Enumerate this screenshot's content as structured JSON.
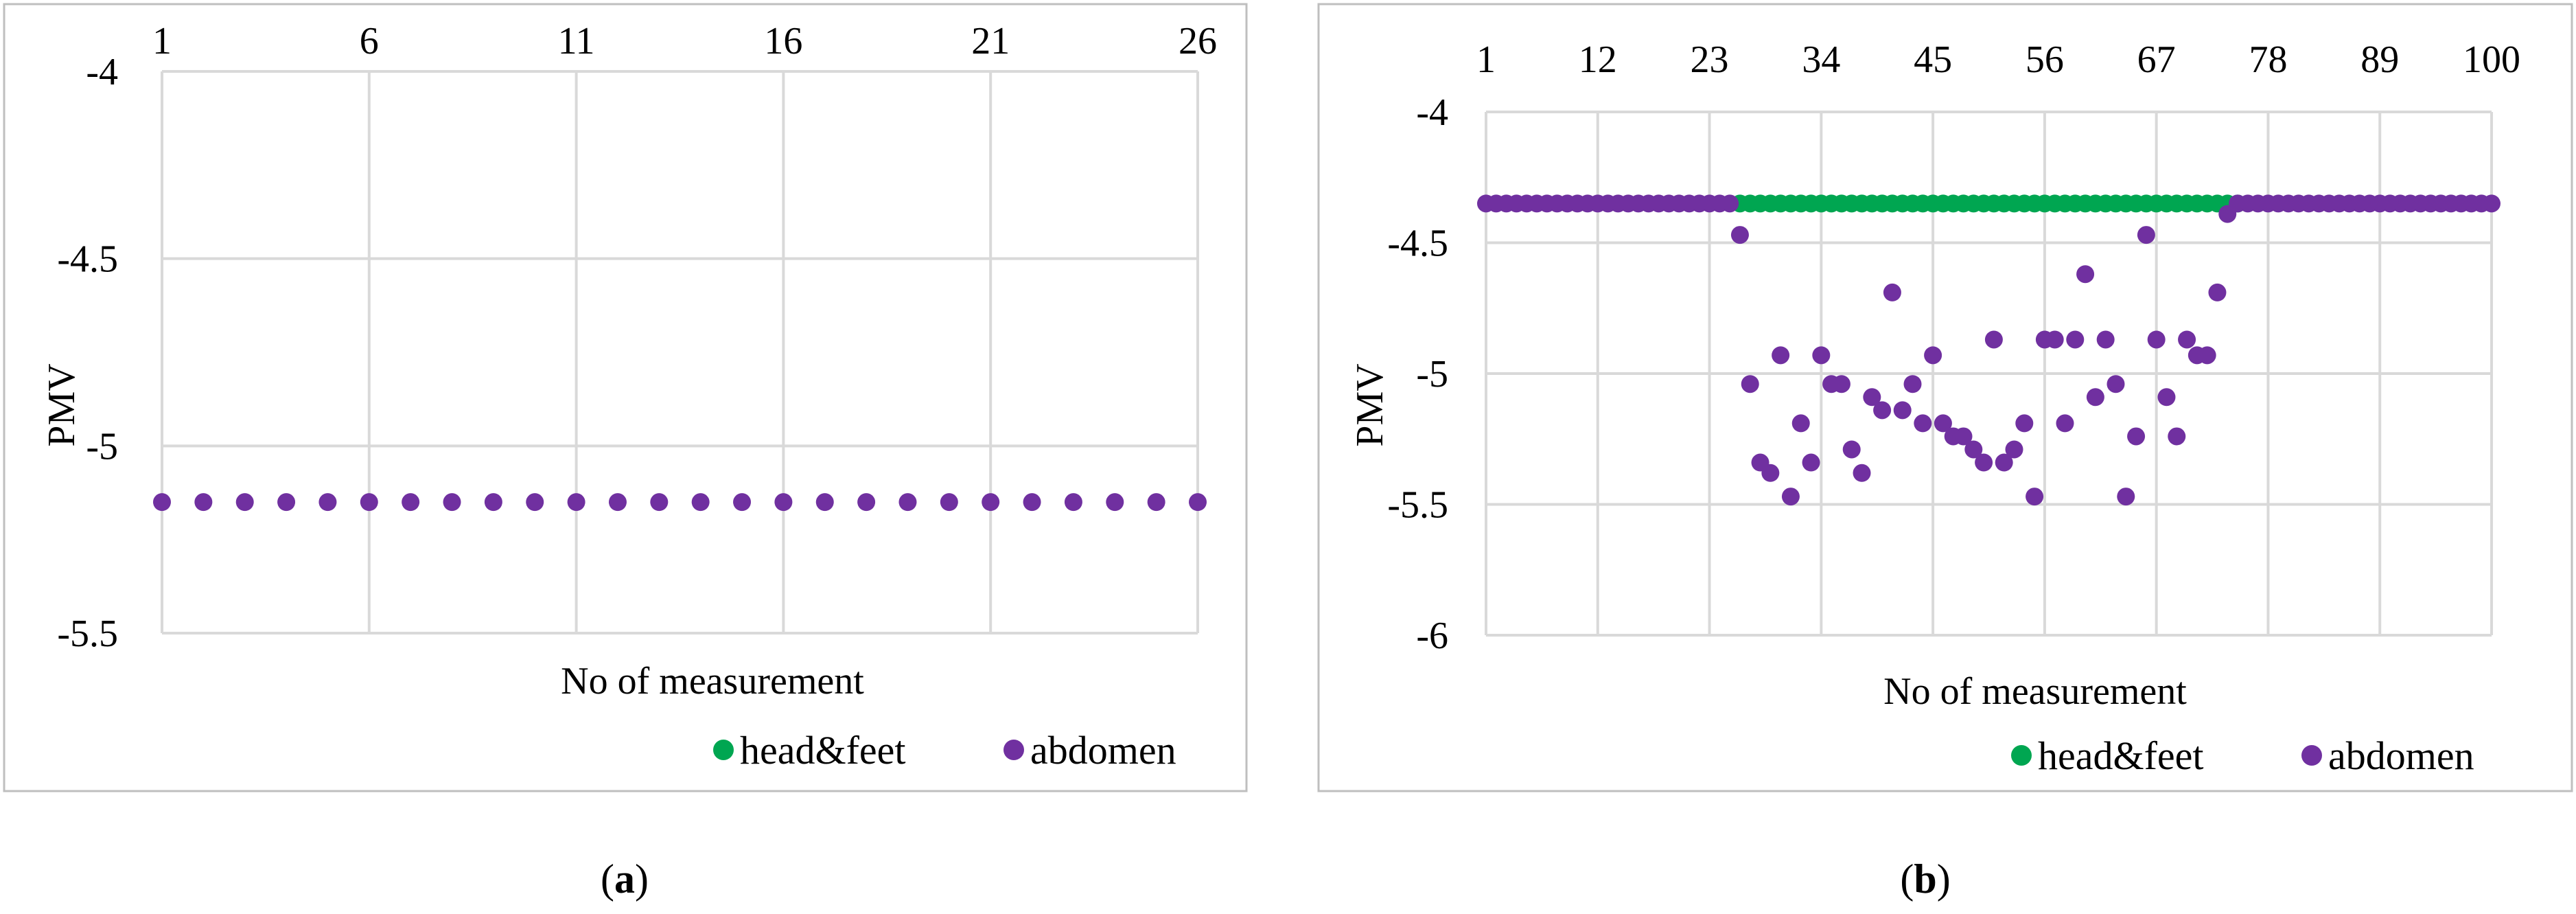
{
  "colors": {
    "head_feet": "#00a651",
    "abdomen": "#7030a0",
    "grid": "#d9d9d9",
    "frame": "#bfbfbf"
  },
  "chart_data": [
    {
      "type": "scatter",
      "panel_label": "a",
      "title": "",
      "xlabel": "No of measurement",
      "ylabel": "PMV",
      "x_axis_position": "top",
      "xlim": [
        1,
        26
      ],
      "ylim": [
        -5.5,
        -4
      ],
      "x_ticks": [
        "1",
        "6",
        "11",
        "16",
        "21",
        "26"
      ],
      "y_ticks": [
        "-4",
        "-4.5",
        "-5",
        "-5.5"
      ],
      "grid": true,
      "legend": "bottom-right",
      "series": [
        {
          "name": "head&feet",
          "color": "#00a651",
          "points": []
        },
        {
          "name": "abdomen",
          "color": "#7030a0",
          "points": [
            [
              1,
              -5.15
            ],
            [
              2,
              -5.15
            ],
            [
              3,
              -5.15
            ],
            [
              4,
              -5.15
            ],
            [
              5,
              -5.15
            ],
            [
              6,
              -5.15
            ],
            [
              7,
              -5.15
            ],
            [
              8,
              -5.15
            ],
            [
              9,
              -5.15
            ],
            [
              10,
              -5.15
            ],
            [
              11,
              -5.15
            ],
            [
              12,
              -5.15
            ],
            [
              13,
              -5.15
            ],
            [
              14,
              -5.15
            ],
            [
              15,
              -5.15
            ],
            [
              16,
              -5.15
            ],
            [
              17,
              -5.15
            ],
            [
              18,
              -5.15
            ],
            [
              19,
              -5.15
            ],
            [
              20,
              -5.15
            ],
            [
              21,
              -5.15
            ],
            [
              22,
              -5.15
            ],
            [
              23,
              -5.15
            ],
            [
              24,
              -5.15
            ],
            [
              25,
              -5.15
            ],
            [
              26,
              -5.15
            ]
          ]
        }
      ]
    },
    {
      "type": "scatter",
      "panel_label": "b",
      "title": "",
      "xlabel": "No of measurement",
      "ylabel": "PMV",
      "x_axis_position": "top",
      "xlim": [
        1,
        100
      ],
      "ylim": [
        -6,
        -4
      ],
      "x_ticks": [
        "1",
        "12",
        "23",
        "34",
        "45",
        "56",
        "67",
        "78",
        "89",
        "100"
      ],
      "y_ticks": [
        "-4",
        "-4.5",
        "-5",
        "-5.5",
        "-6"
      ],
      "grid": true,
      "legend": "bottom-right",
      "series": [
        {
          "name": "head&feet",
          "color": "#00a651",
          "points": [
            [
              26,
              -4.35
            ],
            [
              27,
              -4.35
            ],
            [
              28,
              -4.35
            ],
            [
              29,
              -4.35
            ],
            [
              30,
              -4.35
            ],
            [
              31,
              -4.35
            ],
            [
              32,
              -4.35
            ],
            [
              33,
              -4.35
            ],
            [
              34,
              -4.35
            ],
            [
              35,
              -4.35
            ],
            [
              36,
              -4.35
            ],
            [
              37,
              -4.35
            ],
            [
              38,
              -4.35
            ],
            [
              39,
              -4.35
            ],
            [
              40,
              -4.35
            ],
            [
              41,
              -4.35
            ],
            [
              42,
              -4.35
            ],
            [
              43,
              -4.35
            ],
            [
              44,
              -4.35
            ],
            [
              45,
              -4.35
            ],
            [
              46,
              -4.35
            ],
            [
              47,
              -4.35
            ],
            [
              48,
              -4.35
            ],
            [
              49,
              -4.35
            ],
            [
              50,
              -4.35
            ],
            [
              51,
              -4.35
            ],
            [
              52,
              -4.35
            ],
            [
              53,
              -4.35
            ],
            [
              54,
              -4.35
            ],
            [
              55,
              -4.35
            ],
            [
              56,
              -4.35
            ],
            [
              57,
              -4.35
            ],
            [
              58,
              -4.35
            ],
            [
              59,
              -4.35
            ],
            [
              60,
              -4.35
            ],
            [
              61,
              -4.35
            ],
            [
              62,
              -4.35
            ],
            [
              63,
              -4.35
            ],
            [
              64,
              -4.35
            ],
            [
              65,
              -4.35
            ],
            [
              66,
              -4.35
            ],
            [
              67,
              -4.35
            ],
            [
              68,
              -4.35
            ],
            [
              69,
              -4.35
            ],
            [
              70,
              -4.35
            ],
            [
              71,
              -4.35
            ],
            [
              72,
              -4.35
            ],
            [
              73,
              -4.35
            ],
            [
              74,
              -4.35
            ],
            [
              75,
              -4.35
            ]
          ]
        },
        {
          "name": "abdomen",
          "color": "#7030a0",
          "points": [
            [
              1,
              -4.35
            ],
            [
              2,
              -4.35
            ],
            [
              3,
              -4.35
            ],
            [
              4,
              -4.35
            ],
            [
              5,
              -4.35
            ],
            [
              6,
              -4.35
            ],
            [
              7,
              -4.35
            ],
            [
              8,
              -4.35
            ],
            [
              9,
              -4.35
            ],
            [
              10,
              -4.35
            ],
            [
              11,
              -4.35
            ],
            [
              12,
              -4.35
            ],
            [
              13,
              -4.35
            ],
            [
              14,
              -4.35
            ],
            [
              15,
              -4.35
            ],
            [
              16,
              -4.35
            ],
            [
              17,
              -4.35
            ],
            [
              18,
              -4.35
            ],
            [
              19,
              -4.35
            ],
            [
              20,
              -4.35
            ],
            [
              21,
              -4.35
            ],
            [
              22,
              -4.35
            ],
            [
              23,
              -4.35
            ],
            [
              24,
              -4.35
            ],
            [
              25,
              -4.35
            ],
            [
              26,
              -4.47
            ],
            [
              27,
              -5.04
            ],
            [
              28,
              -5.34
            ],
            [
              29,
              -5.38
            ],
            [
              30,
              -4.93
            ],
            [
              31,
              -5.47
            ],
            [
              32,
              -5.19
            ],
            [
              33,
              -5.34
            ],
            [
              34,
              -4.93
            ],
            [
              35,
              -5.04
            ],
            [
              36,
              -5.04
            ],
            [
              37,
              -5.29
            ],
            [
              38,
              -5.38
            ],
            [
              39,
              -5.09
            ],
            [
              40,
              -5.14
            ],
            [
              41,
              -4.69
            ],
            [
              42,
              -5.14
            ],
            [
              43,
              -5.04
            ],
            [
              44,
              -5.19
            ],
            [
              45,
              -4.93
            ],
            [
              46,
              -5.19
            ],
            [
              47,
              -5.24
            ],
            [
              48,
              -5.24
            ],
            [
              49,
              -5.29
            ],
            [
              50,
              -5.34
            ],
            [
              51,
              -4.87
            ],
            [
              52,
              -5.34
            ],
            [
              53,
              -5.29
            ],
            [
              54,
              -5.19
            ],
            [
              55,
              -5.47
            ],
            [
              56,
              -4.87
            ],
            [
              57,
              -4.87
            ],
            [
              58,
              -5.19
            ],
            [
              59,
              -4.87
            ],
            [
              60,
              -4.62
            ],
            [
              61,
              -5.09
            ],
            [
              62,
              -4.87
            ],
            [
              63,
              -5.04
            ],
            [
              64,
              -5.47
            ],
            [
              65,
              -5.24
            ],
            [
              66,
              -4.47
            ],
            [
              67,
              -4.87
            ],
            [
              68,
              -5.09
            ],
            [
              69,
              -5.24
            ],
            [
              70,
              -4.87
            ],
            [
              71,
              -4.93
            ],
            [
              72,
              -4.93
            ],
            [
              73,
              -4.69
            ],
            [
              74,
              -4.39
            ],
            [
              75,
              -4.35
            ],
            [
              76,
              -4.35
            ],
            [
              77,
              -4.35
            ],
            [
              78,
              -4.35
            ],
            [
              79,
              -4.35
            ],
            [
              80,
              -4.35
            ],
            [
              81,
              -4.35
            ],
            [
              82,
              -4.35
            ],
            [
              83,
              -4.35
            ],
            [
              84,
              -4.35
            ],
            [
              85,
              -4.35
            ],
            [
              86,
              -4.35
            ],
            [
              87,
              -4.35
            ],
            [
              88,
              -4.35
            ],
            [
              89,
              -4.35
            ],
            [
              90,
              -4.35
            ],
            [
              91,
              -4.35
            ],
            [
              92,
              -4.35
            ],
            [
              93,
              -4.35
            ],
            [
              94,
              -4.35
            ],
            [
              95,
              -4.35
            ],
            [
              96,
              -4.35
            ],
            [
              97,
              -4.35
            ],
            [
              98,
              -4.35
            ],
            [
              99,
              -4.35
            ],
            [
              100,
              -4.35
            ]
          ]
        }
      ]
    }
  ]
}
